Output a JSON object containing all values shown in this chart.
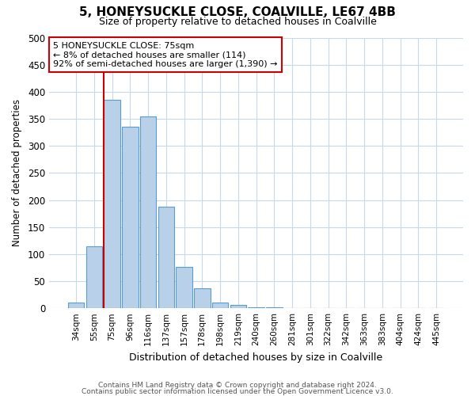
{
  "title": "5, HONEYSUCKLE CLOSE, COALVILLE, LE67 4BB",
  "subtitle": "Size of property relative to detached houses in Coalville",
  "xlabel": "Distribution of detached houses by size in Coalville",
  "ylabel": "Number of detached properties",
  "categories": [
    "34sqm",
    "55sqm",
    "75sqm",
    "96sqm",
    "116sqm",
    "137sqm",
    "157sqm",
    "178sqm",
    "198sqm",
    "219sqm",
    "240sqm",
    "260sqm",
    "281sqm",
    "301sqm",
    "322sqm",
    "342sqm",
    "363sqm",
    "383sqm",
    "404sqm",
    "424sqm",
    "445sqm"
  ],
  "values": [
    10,
    115,
    385,
    335,
    355,
    188,
    76,
    37,
    10,
    6,
    2,
    1,
    0,
    0,
    0,
    0,
    0,
    0,
    0,
    0,
    0
  ],
  "bar_color": "#b8d0e8",
  "bar_edge_color": "#5b9bd5",
  "highlight_index": 2,
  "highlight_line_color": "#cc0000",
  "annotation_line1": "5 HONEYSUCKLE CLOSE: 75sqm",
  "annotation_line2": "← 8% of detached houses are smaller (114)",
  "annotation_line3": "92% of semi-detached houses are larger (1,390) →",
  "annotation_box_color": "#cc0000",
  "ylim": [
    0,
    500
  ],
  "yticks": [
    0,
    50,
    100,
    150,
    200,
    250,
    300,
    350,
    400,
    450,
    500
  ],
  "footer_line1": "Contains HM Land Registry data © Crown copyright and database right 2024.",
  "footer_line2": "Contains public sector information licensed under the Open Government Licence v3.0.",
  "background_color": "#ffffff",
  "grid_color": "#c8d8e8"
}
